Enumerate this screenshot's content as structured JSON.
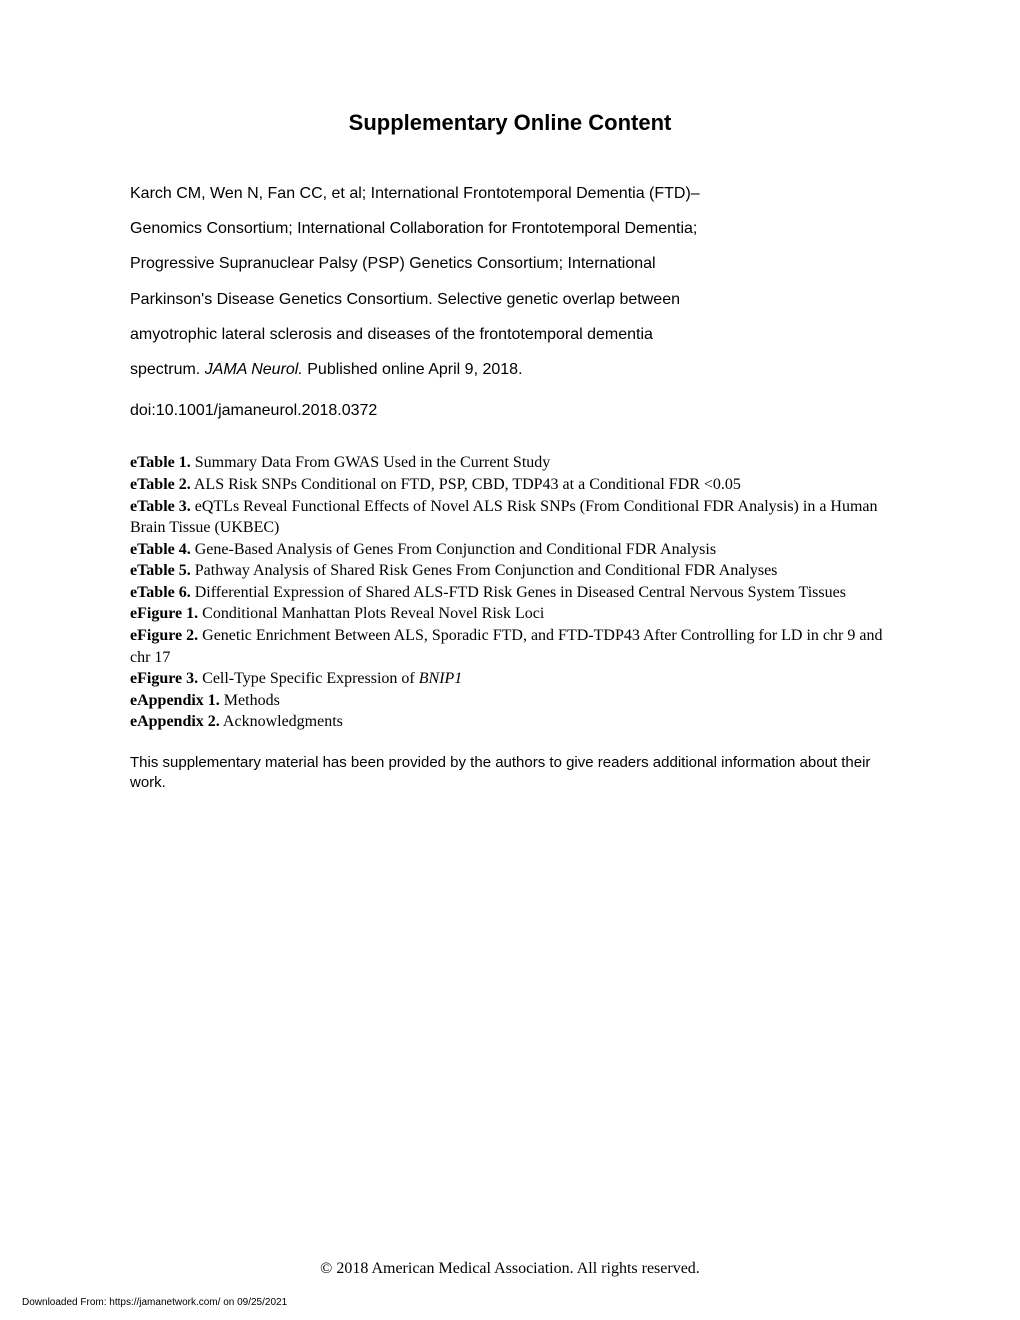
{
  "title": "Supplementary Online Content",
  "citation": {
    "line1": "Karch CM, Wen N, Fan CC, et al; International Frontotemporal Dementia (FTD)–",
    "line2": "Genomics Consortium; International Collaboration for Frontotemporal Dementia;",
    "line3": "Progressive Supranuclear Palsy (PSP) Genetics Consortium; International",
    "line4": "Parkinson's Disease Genetics Consortium. Selective genetic overlap between",
    "line5": "amyotrophic lateral sclerosis and diseases of the frontotemporal dementia",
    "line6_pre": "spectrum. ",
    "line6_italic": "JAMA Neurol.",
    "line6_post": " Published online April 9, 2018."
  },
  "doi": "doi:10.1001/jamaneurol.2018.0372",
  "toc": [
    {
      "label": "eTable 1.",
      "text": " Summary Data From GWAS Used in the Current Study"
    },
    {
      "label": "eTable 2.",
      "text": " ALS Risk SNPs Conditional on FTD, PSP, CBD, TDP43 at a Conditional FDR <0.05"
    },
    {
      "label": "eTable 3.",
      "text": " eQTLs Reveal Functional Effects of Novel ALS Risk SNPs (From Conditional FDR Analysis) in a Human Brain Tissue (UKBEC)"
    },
    {
      "label": "eTable 4.",
      "text": " Gene-Based Analysis of Genes From Conjunction and Conditional FDR Analysis"
    },
    {
      "label": "eTable 5.",
      "text": " Pathway Analysis of Shared Risk Genes From Conjunction and Conditional FDR Analyses"
    },
    {
      "label": "eTable 6.",
      "text": " Differential Expression of Shared ALS-FTD Risk Genes in Diseased Central Nervous System Tissues"
    },
    {
      "label": "eFigure 1.",
      "text": " Conditional Manhattan Plots Reveal Novel Risk Loci"
    },
    {
      "label": "eFigure 2.",
      "text": " Genetic Enrichment Between ALS, Sporadic FTD, and FTD-TDP43 After Controlling for LD in chr 9 and chr 17"
    },
    {
      "label": "eFigure 3.",
      "text_pre": " Cell-Type Specific Expression of ",
      "text_italic": "BNIP1"
    },
    {
      "label": "eAppendix 1.",
      "text": " Methods"
    },
    {
      "label": "eAppendix 2.",
      "text": " Acknowledgments"
    }
  ],
  "note": "This supplementary material has been provided by the authors to give readers additional information about their work.",
  "copyright": "© 2018 American Medical Association. All rights reserved.",
  "download": "Downloaded From: https://jamanetwork.com/ on 09/25/2021"
}
